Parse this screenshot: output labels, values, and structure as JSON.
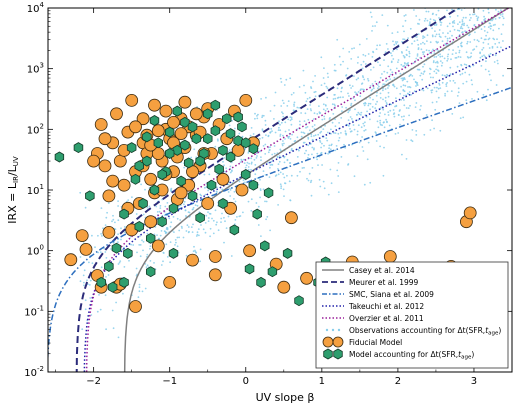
{
  "chart_data": {
    "type": "scatter",
    "xlabel": "UV slope β",
    "ylabel": "IRX = L_IR/L_UV",
    "ylabel_main": "IRX = L",
    "ylabel_sub1": "IR",
    "ylabel_mid": "/L",
    "ylabel_sub2": "UV",
    "xlim": [
      -2.6,
      3.5
    ],
    "ylim": [
      0.01,
      10000
    ],
    "yscale": "log",
    "x_ticks": [
      -2,
      -1,
      0,
      1,
      2,
      3
    ],
    "x_tick_labels": [
      "−2",
      "−1",
      "0",
      "1",
      "2",
      "3"
    ],
    "y_ticks": [
      0.01,
      0.1,
      1,
      10,
      100,
      1000,
      10000
    ],
    "y_tick_labels": [
      {
        "base": "10",
        "exp": "-2"
      },
      {
        "base": "10",
        "exp": "-1"
      },
      {
        "base": "10",
        "exp": "0"
      },
      {
        "base": "10",
        "exp": "1"
      },
      {
        "base": "10",
        "exp": "2"
      },
      {
        "base": "10",
        "exp": "3"
      },
      {
        "base": "10",
        "exp": "4"
      }
    ],
    "legend_position": "lower-right",
    "series": [
      {
        "name": "Casey et al. 2014",
        "kind": "line",
        "style": "solid",
        "color": "#808080",
        "beta0": -1.6,
        "slope": 1.98
      },
      {
        "name": "Meurer et al. 1999",
        "kind": "line",
        "style": "dashed",
        "color": "#2b2b7a",
        "beta0": -2.23,
        "slope": 1.99
      },
      {
        "name": "SMC, Siana et al. 2009",
        "kind": "line",
        "style": "dashdot",
        "color": "#2d6fbf",
        "beta0": -2.62,
        "slope": 1.1
      },
      {
        "name": "Takeuchi et al. 2012",
        "kind": "line",
        "style": "dotted",
        "color": "#2222aa",
        "beta0": -2.13,
        "slope": 1.5
      },
      {
        "name": "Overzier et al. 2011",
        "kind": "line",
        "style": "dotted",
        "color": "#9a1f9a",
        "beta0": -2.1,
        "slope": 1.8
      },
      {
        "name": "Observations accounting for Δt(SFR, t_age)",
        "legend_main": "Observations accounting for Δt(SFR,",
        "legend_tail": ")",
        "kind": "scatter-small",
        "color": "#87ceeb"
      },
      {
        "name": "Fiducial Model",
        "kind": "scatter",
        "color": "#f5a040",
        "edge": "#3a2a10"
      },
      {
        "name": "Model accounting for Δt(SFR, t_age)",
        "legend_main": "Model accounting for Δt(SFR,",
        "legend_tail": ")",
        "kind": "scatter",
        "color": "#2e9e6e",
        "edge": "#143a28"
      }
    ],
    "legend_age_symbol": "t",
    "legend_age_sub": "age",
    "fiducial_points": [
      [
        -2.3,
        0.71
      ],
      [
        -2.15,
        1.77
      ],
      [
        -2.1,
        1.05
      ],
      [
        -1.95,
        0.39
      ],
      [
        -1.8,
        2.0
      ],
      [
        -1.75,
        14
      ],
      [
        -1.7,
        0.25
      ],
      [
        -1.65,
        0.28
      ],
      [
        -1.55,
        5.0
      ],
      [
        -1.5,
        2.2
      ],
      [
        -1.35,
        60
      ],
      [
        -1.3,
        40
      ],
      [
        -1.25,
        3.0
      ],
      [
        -1.2,
        9.0
      ],
      [
        -1.15,
        1.2
      ],
      [
        -1.1,
        30
      ],
      [
        -1.05,
        100
      ],
      [
        -1.0,
        0.3
      ],
      [
        -0.95,
        20
      ],
      [
        -0.9,
        7
      ],
      [
        -0.85,
        150
      ],
      [
        -0.8,
        50
      ],
      [
        -0.75,
        12
      ],
      [
        -0.7,
        0.7
      ],
      [
        -0.65,
        80
      ],
      [
        -0.6,
        25
      ],
      [
        -0.55,
        160
      ],
      [
        -0.5,
        6
      ],
      [
        -0.45,
        40
      ],
      [
        -0.4,
        0.4
      ],
      [
        -0.35,
        120
      ],
      [
        -0.3,
        15
      ],
      [
        -0.25,
        70
      ],
      [
        -0.2,
        5
      ],
      [
        -0.15,
        200
      ],
      [
        -0.1,
        45
      ],
      [
        -0.05,
        10
      ],
      [
        0.0,
        300
      ],
      [
        0.05,
        1.0
      ],
      [
        0.1,
        60
      ],
      [
        -1.95,
        40
      ],
      [
        -1.9,
        120
      ],
      [
        -1.85,
        25
      ],
      [
        -1.8,
        8
      ],
      [
        -1.75,
        60
      ],
      [
        -1.7,
        180
      ],
      [
        -1.65,
        30
      ],
      [
        -1.6,
        12
      ],
      [
        -1.55,
        90
      ],
      [
        -1.5,
        300
      ],
      [
        -1.45,
        20
      ],
      [
        -1.4,
        6
      ],
      [
        -1.35,
        150
      ],
      [
        -1.3,
        80
      ],
      [
        -1.25,
        15
      ],
      [
        -1.2,
        250
      ],
      [
        -1.15,
        40
      ],
      [
        -1.1,
        10
      ],
      [
        -1.05,
        200
      ],
      [
        -1.0,
        70
      ],
      [
        -0.95,
        130
      ],
      [
        -0.9,
        35
      ],
      [
        -0.85,
        9
      ],
      [
        -0.8,
        280
      ],
      [
        -0.75,
        110
      ],
      [
        -0.7,
        20
      ],
      [
        -0.65,
        180
      ],
      [
        -0.6,
        90
      ],
      [
        -0.55,
        40
      ],
      [
        -0.5,
        220
      ],
      [
        -2.0,
        30
      ],
      [
        -1.85,
        70
      ],
      [
        -1.6,
        45
      ],
      [
        -1.45,
        110
      ],
      [
        -1.35,
        25
      ],
      [
        -1.25,
        55
      ],
      [
        -1.15,
        95
      ],
      [
        -1.05,
        18
      ],
      [
        -0.95,
        60
      ],
      [
        -0.85,
        85
      ],
      [
        0.4,
        0.6
      ],
      [
        0.5,
        0.25
      ],
      [
        0.6,
        3.5
      ],
      [
        0.8,
        0.35
      ],
      [
        1.2,
        0.3
      ],
      [
        1.55,
        0.45
      ],
      [
        1.9,
        0.8
      ],
      [
        2.1,
        0.45
      ],
      [
        2.7,
        0.55
      ],
      [
        2.9,
        3.0
      ],
      [
        2.95,
        4.2
      ],
      [
        1.4,
        0.65
      ],
      [
        -0.4,
        0.8
      ],
      [
        -1.45,
        0.12
      ],
      [
        -1.9,
        0.25
      ]
    ],
    "model_points": [
      [
        -2.45,
        35
      ],
      [
        -2.2,
        50
      ],
      [
        -2.05,
        8
      ],
      [
        -1.9,
        0.3
      ],
      [
        -1.8,
        0.55
      ],
      [
        -1.7,
        1.1
      ],
      [
        -1.6,
        4
      ],
      [
        -1.55,
        0.9
      ],
      [
        -1.45,
        15
      ],
      [
        -1.4,
        2.5
      ],
      [
        -1.35,
        6
      ],
      [
        -1.3,
        30
      ],
      [
        -1.25,
        1.6
      ],
      [
        -1.2,
        10
      ],
      [
        -1.15,
        60
      ],
      [
        -1.1,
        3
      ],
      [
        -1.05,
        20
      ],
      [
        -1.0,
        90
      ],
      [
        -0.95,
        5
      ],
      [
        -0.9,
        45
      ],
      [
        -0.85,
        14
      ],
      [
        -0.8,
        130
      ],
      [
        -0.75,
        28
      ],
      [
        -0.7,
        8
      ],
      [
        -0.65,
        70
      ],
      [
        -0.6,
        3.5
      ],
      [
        -0.55,
        40
      ],
      [
        -0.5,
        180
      ],
      [
        -0.45,
        12
      ],
      [
        -0.4,
        95
      ],
      [
        -0.35,
        22
      ],
      [
        -0.3,
        6
      ],
      [
        -0.25,
        150
      ],
      [
        -0.2,
        35
      ],
      [
        -0.15,
        2.2
      ],
      [
        -0.1,
        65
      ],
      [
        -0.05,
        110
      ],
      [
        0.0,
        18
      ],
      [
        0.05,
        0.5
      ],
      [
        0.1,
        48
      ],
      [
        0.15,
        4
      ],
      [
        0.2,
        0.3
      ],
      [
        0.25,
        1.2
      ],
      [
        0.35,
        0.45
      ],
      [
        0.55,
        0.9
      ],
      [
        0.7,
        0.15
      ],
      [
        0.95,
        0.3
      ],
      [
        1.05,
        0.65
      ],
      [
        0.3,
        9
      ],
      [
        -1.5,
        50
      ],
      [
        -1.4,
        25
      ],
      [
        -1.3,
        75
      ],
      [
        -1.2,
        140
      ],
      [
        -1.1,
        18
      ],
      [
        -1.0,
        40
      ],
      [
        -0.9,
        200
      ],
      [
        -0.8,
        55
      ],
      [
        -0.7,
        110
      ],
      [
        -0.6,
        30
      ],
      [
        -0.5,
        70
      ],
      [
        -0.4,
        250
      ],
      [
        -0.3,
        45
      ],
      [
        -0.2,
        85
      ],
      [
        -0.1,
        160
      ],
      [
        0.0,
        60
      ],
      [
        0.1,
        12
      ],
      [
        -1.6,
        0.3
      ],
      [
        -1.75,
        0.25
      ],
      [
        -1.25,
        0.45
      ],
      [
        -0.95,
        0.9
      ]
    ]
  }
}
